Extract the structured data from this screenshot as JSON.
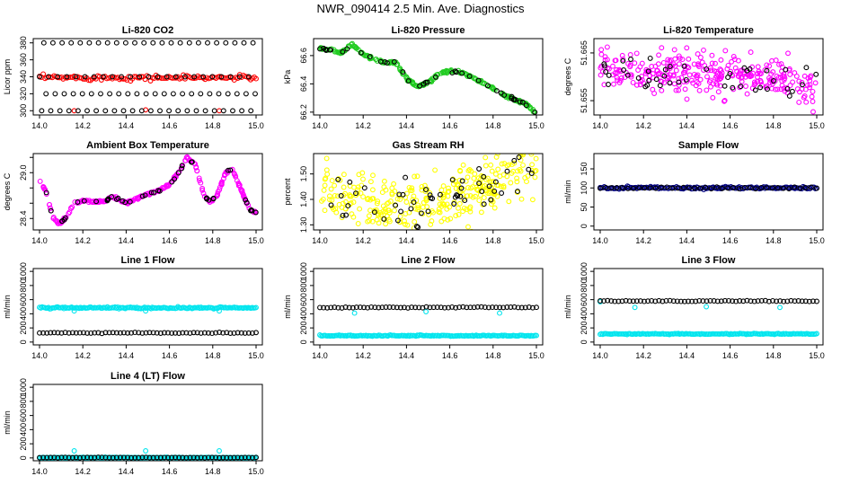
{
  "page_title": "NWR_090414  2.5 Min. Ave. Diagnostics",
  "colors": {
    "black": "#000000",
    "red": "#ff0000",
    "green": "#22cc22",
    "magenta": "#ff00ff",
    "yellow": "#ffff00",
    "navy": "#000080",
    "cyan": "#00e5ee"
  },
  "chart_data": [
    {
      "id": "co2",
      "type": "scatter",
      "title": "Li-820 CO2",
      "xlabel": "",
      "ylabel": "Licor ppm",
      "xlim": [
        14.0,
        15.0
      ],
      "ylim": [
        295,
        385
      ],
      "yticks": [
        300,
        320,
        340,
        360,
        380
      ],
      "ytick_labels": [
        "300",
        "320",
        "340",
        "360",
        "380"
      ],
      "xticks": [
        14.0,
        14.2,
        14.4,
        14.6,
        14.8,
        15.0
      ],
      "xtick_labels": [
        "14.0",
        "14.2",
        "14.4",
        "14.6",
        "14.8",
        "15.0"
      ],
      "series": [
        {
          "color": "red",
          "marker": "circle",
          "pattern": "band",
          "center": 339,
          "spread": 1.5,
          "n": 120
        },
        {
          "color": "red",
          "marker": "circle",
          "points": [
            [
              14.16,
              300
            ],
            [
              14.49,
              301
            ],
            [
              14.83,
              300
            ]
          ]
        },
        {
          "color": "black",
          "marker": "circle",
          "pattern": "levels",
          "levels": [
            300,
            320,
            340,
            380
          ],
          "step": 0.042,
          "offsets": [
            0.01,
            0.03,
            0.0,
            0.02
          ]
        }
      ]
    },
    {
      "id": "pressure",
      "type": "scatter",
      "title": "Li-820 Pressure",
      "xlabel": "",
      "ylabel": "kPa",
      "xlim": [
        14.0,
        15.0
      ],
      "ylim": [
        66.18,
        66.72
      ],
      "yticks": [
        66.2,
        66.4,
        66.6
      ],
      "ytick_labels": [
        "66.2",
        "66.4",
        "66.6"
      ],
      "xticks": [
        14.0,
        14.2,
        14.4,
        14.6,
        14.8,
        15.0
      ],
      "xtick_labels": [
        "14.0",
        "14.2",
        "14.4",
        "14.6",
        "14.8",
        "15.0"
      ],
      "series": [
        {
          "color": "green",
          "marker": "circle",
          "pattern": "curve",
          "n": 240,
          "noise": 0.005,
          "curve": [
            [
              14.0,
              66.65
            ],
            [
              14.05,
              66.64
            ],
            [
              14.1,
              66.62
            ],
            [
              14.15,
              66.68
            ],
            [
              14.2,
              66.61
            ],
            [
              14.25,
              66.58
            ],
            [
              14.3,
              66.55
            ],
            [
              14.35,
              66.55
            ],
            [
              14.4,
              66.44
            ],
            [
              14.45,
              66.38
            ],
            [
              14.5,
              66.41
            ],
            [
              14.55,
              66.47
            ],
            [
              14.6,
              66.49
            ],
            [
              14.65,
              66.48
            ],
            [
              14.7,
              66.45
            ],
            [
              14.75,
              66.41
            ],
            [
              14.8,
              66.37
            ],
            [
              14.85,
              66.32
            ],
            [
              14.9,
              66.29
            ],
            [
              14.95,
              66.26
            ],
            [
              15.0,
              66.19
            ]
          ]
        },
        {
          "color": "black",
          "marker": "circle",
          "pattern": "curve",
          "n": 40,
          "noise": 0.004,
          "same_curve_as": 0
        }
      ]
    },
    {
      "id": "temperature",
      "type": "scatter",
      "title": "Li-820 Temperature",
      "xlabel": "",
      "ylabel": "degrees C",
      "xlim": [
        14.0,
        15.0
      ],
      "ylim": [
        51.652,
        51.668
      ],
      "yticks": [
        51.655,
        51.665
      ],
      "ytick_labels": [
        "51.655",
        "51.665"
      ],
      "xticks": [
        14.0,
        14.2,
        14.4,
        14.6,
        14.8,
        15.0
      ],
      "xtick_labels": [
        "14.0",
        "14.2",
        "14.4",
        "14.6",
        "14.8",
        "15.0"
      ],
      "series": [
        {
          "color": "magenta",
          "marker": "circle",
          "pattern": "curve",
          "n": 300,
          "noise": 0.0022,
          "curve": [
            [
              14.0,
              51.662
            ],
            [
              14.2,
              51.6605
            ],
            [
              14.4,
              51.6605
            ],
            [
              14.6,
              51.6605
            ],
            [
              14.8,
              51.66
            ],
            [
              15.0,
              51.6565
            ]
          ]
        },
        {
          "color": "black",
          "marker": "circle",
          "pattern": "curve",
          "n": 45,
          "noise": 0.0018,
          "same_curve_as": 0
        }
      ]
    },
    {
      "id": "ambient",
      "type": "scatter",
      "title": "Ambient Box Temperature",
      "xlabel": "",
      "ylabel": "degrees C",
      "xlim": [
        14.0,
        15.0
      ],
      "ylim": [
        28.25,
        29.25
      ],
      "yticks": [
        28.4,
        28.6,
        28.8,
        29.0,
        29.2
      ],
      "ytick_labels": [
        "28.4",
        "",
        "",
        "29.0",
        ""
      ],
      "xticks": [
        14.0,
        14.2,
        14.4,
        14.6,
        14.8,
        15.0
      ],
      "xtick_labels": [
        "14.0",
        "14.2",
        "14.4",
        "14.6",
        "14.8",
        "15.0"
      ],
      "series": [
        {
          "color": "magenta",
          "marker": "circle",
          "pattern": "curve",
          "n": 260,
          "noise": 0.008,
          "curve": [
            [
              14.0,
              28.9
            ],
            [
              14.03,
              28.75
            ],
            [
              14.06,
              28.42
            ],
            [
              14.09,
              28.33
            ],
            [
              14.12,
              28.4
            ],
            [
              14.16,
              28.6
            ],
            [
              14.2,
              28.63
            ],
            [
              14.25,
              28.62
            ],
            [
              14.3,
              28.62
            ],
            [
              14.33,
              28.68
            ],
            [
              14.36,
              28.66
            ],
            [
              14.4,
              28.6
            ],
            [
              14.45,
              28.66
            ],
            [
              14.5,
              28.72
            ],
            [
              14.55,
              28.76
            ],
            [
              14.6,
              28.84
            ],
            [
              14.65,
              29.03
            ],
            [
              14.68,
              29.2
            ],
            [
              14.72,
              29.1
            ],
            [
              14.76,
              28.7
            ],
            [
              14.79,
              28.62
            ],
            [
              14.82,
              28.7
            ],
            [
              14.86,
              29.0
            ],
            [
              14.89,
              29.05
            ],
            [
              14.93,
              28.78
            ],
            [
              14.97,
              28.52
            ],
            [
              15.0,
              28.48
            ]
          ]
        },
        {
          "color": "black",
          "marker": "circle",
          "pattern": "curve",
          "n": 45,
          "noise": 0.006,
          "same_curve_as": 0
        }
      ]
    },
    {
      "id": "rh",
      "type": "scatter",
      "title": "Gas Stream RH",
      "xlabel": "",
      "ylabel": "percent",
      "xlim": [
        14.0,
        15.0
      ],
      "ylim": [
        1.28,
        1.58
      ],
      "yticks": [
        1.3,
        1.4,
        1.5
      ],
      "ytick_labels": [
        "1.30",
        "1.40",
        "1.50"
      ],
      "xticks": [
        14.0,
        14.2,
        14.4,
        14.6,
        14.8,
        15.0
      ],
      "xtick_labels": [
        "14.0",
        "14.2",
        "14.4",
        "14.6",
        "14.8",
        "15.0"
      ],
      "series": [
        {
          "color": "yellow",
          "marker": "circle",
          "pattern": "curve",
          "n": 320,
          "noise": 0.05,
          "curve": [
            [
              14.0,
              1.42
            ],
            [
              14.2,
              1.4
            ],
            [
              14.4,
              1.37
            ],
            [
              14.6,
              1.4
            ],
            [
              14.8,
              1.46
            ],
            [
              15.0,
              1.52
            ]
          ]
        },
        {
          "color": "black",
          "marker": "circle",
          "pattern": "curve",
          "n": 55,
          "noise": 0.04,
          "same_curve_as": 0
        }
      ]
    },
    {
      "id": "sample",
      "type": "scatter",
      "title": "Sample Flow",
      "xlabel": "",
      "ylabel": "ml/min",
      "xlim": [
        14.0,
        15.0
      ],
      "ylim": [
        -10,
        190
      ],
      "yticks": [
        0,
        50,
        100,
        150
      ],
      "ytick_labels": [
        "0",
        "50",
        "100",
        "150"
      ],
      "xticks": [
        14.0,
        14.2,
        14.4,
        14.6,
        14.8,
        15.0
      ],
      "xtick_labels": [
        "14.0",
        "14.2",
        "14.4",
        "14.6",
        "14.8",
        "15.0"
      ],
      "series": [
        {
          "color": "navy",
          "marker": "circle",
          "pattern": "band",
          "center": 100,
          "spread": 1.5,
          "n": 160
        },
        {
          "color": "black",
          "marker": "circle",
          "pattern": "band",
          "center": 100,
          "spread": 1.2,
          "n": 40
        }
      ]
    },
    {
      "id": "line1",
      "type": "scatter",
      "title": "Line 1 Flow",
      "xlabel": "",
      "ylabel": "ml/min",
      "xlim": [
        14.0,
        15.0
      ],
      "ylim": [
        -40,
        1040
      ],
      "yticks": [
        0,
        200,
        400,
        600,
        800,
        1000
      ],
      "ytick_labels": [
        "0",
        "200",
        "400",
        "600",
        "800",
        "1000"
      ],
      "xticks": [
        14.0,
        14.2,
        14.4,
        14.6,
        14.8,
        15.0
      ],
      "xtick_labels": [
        "14.0",
        "14.2",
        "14.4",
        "14.6",
        "14.8",
        "15.0"
      ],
      "series": [
        {
          "color": "cyan",
          "marker": "circle",
          "pattern": "band",
          "center": 485,
          "spread": 6,
          "n": 170
        },
        {
          "color": "cyan",
          "marker": "circle",
          "points": [
            [
              14.16,
              440
            ],
            [
              14.49,
              440
            ],
            [
              14.83,
              440
            ]
          ]
        },
        {
          "color": "black",
          "marker": "circle",
          "pattern": "band",
          "center": 130,
          "spread": 3,
          "n": 60
        }
      ]
    },
    {
      "id": "line2",
      "type": "scatter",
      "title": "Line 2 Flow",
      "xlabel": "",
      "ylabel": "ml/min",
      "xlim": [
        14.0,
        15.0
      ],
      "ylim": [
        -40,
        1040
      ],
      "yticks": [
        0,
        200,
        400,
        600,
        800,
        1000
      ],
      "ytick_labels": [
        "0",
        "200",
        "400",
        "600",
        "800",
        "1000"
      ],
      "xticks": [
        14.0,
        14.2,
        14.4,
        14.6,
        14.8,
        15.0
      ],
      "xtick_labels": [
        "14.0",
        "14.2",
        "14.4",
        "14.6",
        "14.8",
        "15.0"
      ],
      "series": [
        {
          "color": "cyan",
          "marker": "circle",
          "pattern": "band",
          "center": 90,
          "spread": 4,
          "n": 170
        },
        {
          "color": "cyan",
          "marker": "circle",
          "points": [
            [
              14.16,
              410
            ],
            [
              14.49,
              430
            ],
            [
              14.83,
              410
            ]
          ]
        },
        {
          "color": "black",
          "marker": "circle",
          "pattern": "band",
          "center": 490,
          "spread": 4,
          "n": 60
        }
      ]
    },
    {
      "id": "line3",
      "type": "scatter",
      "title": "Line 3 Flow",
      "xlabel": "",
      "ylabel": "ml/min",
      "xlim": [
        14.0,
        15.0
      ],
      "ylim": [
        -40,
        1040
      ],
      "yticks": [
        0,
        200,
        400,
        600,
        800,
        1000
      ],
      "ytick_labels": [
        "0",
        "200",
        "400",
        "600",
        "800",
        "1000"
      ],
      "xticks": [
        14.0,
        14.2,
        14.4,
        14.6,
        14.8,
        15.0
      ],
      "xtick_labels": [
        "14.0",
        "14.2",
        "14.4",
        "14.6",
        "14.8",
        "15.0"
      ],
      "series": [
        {
          "color": "cyan",
          "marker": "circle",
          "pattern": "band",
          "center": 115,
          "spread": 3,
          "n": 170
        },
        {
          "color": "cyan",
          "marker": "circle",
          "points": [
            [
              14.0,
              570
            ],
            [
              14.16,
              490
            ],
            [
              14.49,
              500
            ],
            [
              14.83,
              490
            ]
          ]
        },
        {
          "color": "black",
          "marker": "circle",
          "pattern": "band",
          "center": 580,
          "spread": 4,
          "n": 60
        }
      ]
    },
    {
      "id": "line4",
      "type": "scatter",
      "title": "Line 4 (LT) Flow",
      "xlabel": "",
      "ylabel": "ml/min",
      "xlim": [
        14.0,
        15.0
      ],
      "ylim": [
        -40,
        1040
      ],
      "yticks": [
        0,
        200,
        400,
        600,
        800,
        1000
      ],
      "ytick_labels": [
        "0",
        "200",
        "400",
        "600",
        "800",
        "1000"
      ],
      "xticks": [
        14.0,
        14.2,
        14.4,
        14.6,
        14.8,
        15.0
      ],
      "xtick_labels": [
        "14.0",
        "14.2",
        "14.4",
        "14.6",
        "14.8",
        "15.0"
      ],
      "series": [
        {
          "color": "cyan",
          "marker": "circle",
          "pattern": "band",
          "center": 5,
          "spread": 2,
          "n": 170
        },
        {
          "color": "cyan",
          "marker": "circle",
          "points": [
            [
              14.16,
              100
            ],
            [
              14.49,
              100
            ],
            [
              14.83,
              100
            ]
          ]
        },
        {
          "color": "black",
          "marker": "circle",
          "pattern": "band",
          "center": 5,
          "spread": 2,
          "n": 60
        }
      ]
    }
  ]
}
